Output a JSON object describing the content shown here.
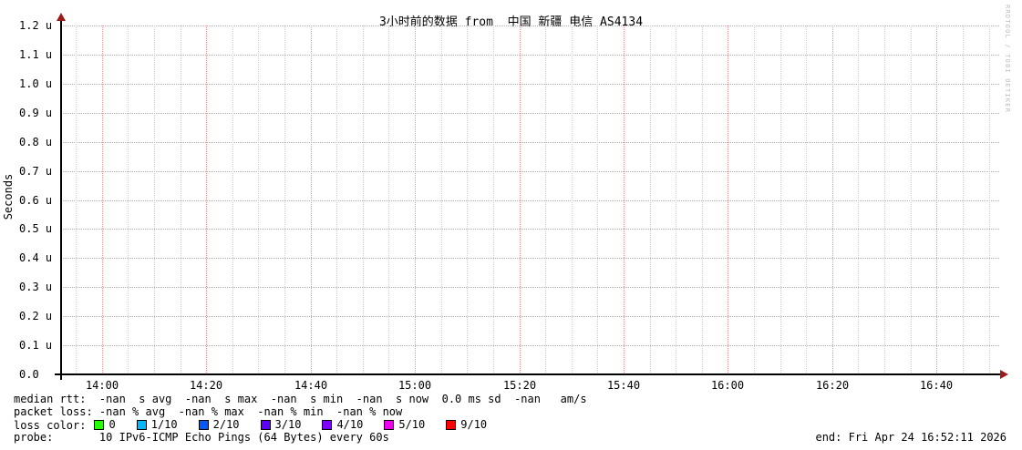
{
  "watermark": "RRDTOOL / TOBI OETIKER",
  "chart_data": {
    "type": "line",
    "title": "3小时前的数据 from  中国 新疆 电信 AS4134",
    "xlabel": "",
    "ylabel": "Seconds",
    "series": [],
    "note_visible_state": "empty plot - no data drawn",
    "y_ticks": [
      "1.2 u",
      "1.1 u",
      "1.0 u",
      "0.9 u",
      "0.8 u",
      "0.7 u",
      "0.6 u",
      "0.5 u",
      "0.4 u",
      "0.3 u",
      "0.2 u",
      "0.1 u",
      "0.0"
    ],
    "ylim_microseconds": [
      0.0,
      1.2
    ],
    "y_major_step": 0.1,
    "x_ticks": [
      "14:00",
      "14:20",
      "14:40",
      "15:00",
      "15:20",
      "15:40",
      "16:00",
      "16:20",
      "16:40"
    ],
    "time_end": "16:52:11",
    "duration_hours": 3,
    "x_minor_step_min": 5,
    "x_major_step_min": 20,
    "grid": {
      "major_color": "#ff8d8d",
      "minor_color": "#cfcfcf",
      "axis_color": "#000000",
      "arrow_color": "#9b1b1b"
    }
  },
  "legend": {
    "median_rtt": "median rtt:  -nan  s avg  -nan  s max  -nan  s min  -nan  s now  0.0 ms sd  -nan   am/s",
    "packet_loss": "packet loss: -nan % avg  -nan % max  -nan % min  -nan % now",
    "loss_color_label": "loss color:",
    "loss_colors": [
      {
        "label": "0",
        "color": "#26ff00"
      },
      {
        "label": "1/10",
        "color": "#00b8ff"
      },
      {
        "label": "2/10",
        "color": "#0059ff"
      },
      {
        "label": "3/10",
        "color": "#5e00ff"
      },
      {
        "label": "4/10",
        "color": "#7e00ff"
      },
      {
        "label": "5/10",
        "color": "#ee00ee"
      },
      {
        "label": "9/10",
        "color": "#ff0000"
      }
    ],
    "probe": "probe:       10 IPv6-ICMP Echo Pings (64 Bytes) every 60s",
    "end": "end: Fri Apr 24 16:52:11 2026"
  }
}
